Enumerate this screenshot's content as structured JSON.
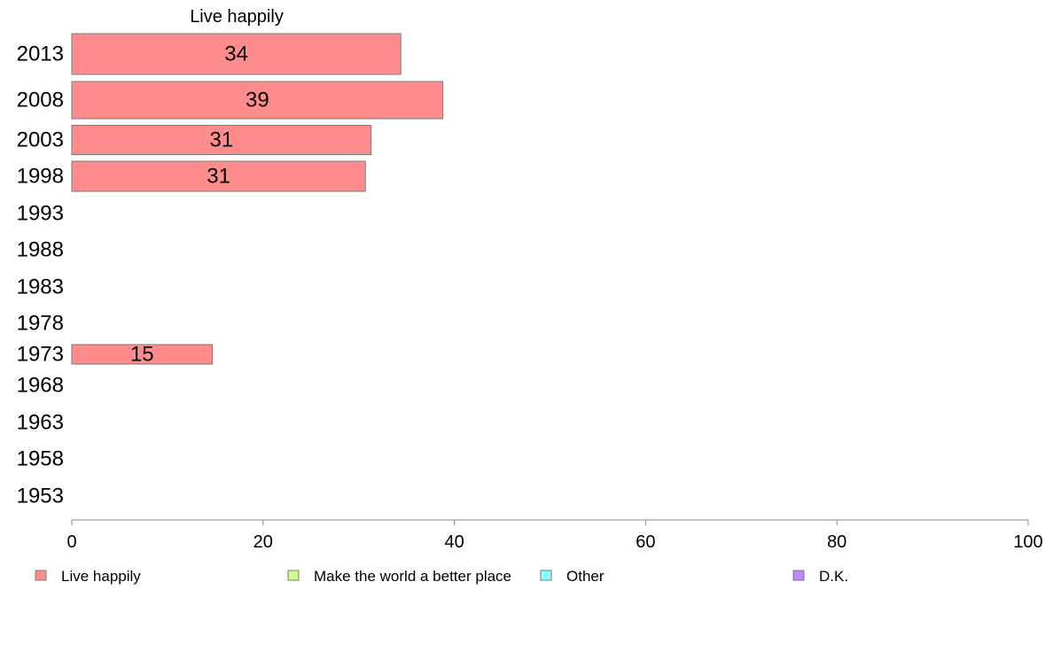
{
  "chart_data": {
    "type": "bar",
    "orientation": "horizontal",
    "title": "Live happily",
    "categories": [
      "2013",
      "2008",
      "2003",
      "1998",
      "1993",
      "1988",
      "1983",
      "1978",
      "1973",
      "1968",
      "1963",
      "1958",
      "1953"
    ],
    "series": [
      {
        "name": "Live happily",
        "color": "#ff8c8c",
        "values": [
          34.4,
          38.8,
          31.3,
          30.7,
          null,
          null,
          null,
          null,
          14.7,
          null,
          null,
          null,
          null
        ]
      }
    ],
    "data_labels": [
      "34",
      "39",
      "31",
      "31",
      "",
      "",
      "",
      "",
      "15",
      "",
      "",
      "",
      ""
    ],
    "xlim": [
      0,
      100
    ],
    "xticks": [
      0,
      20,
      40,
      60,
      80,
      100
    ],
    "xlabel": "",
    "ylabel": "",
    "grid": false,
    "legend_position": "bottom",
    "legend": [
      {
        "label": "Live happily",
        "color": "#ff8c8c"
      },
      {
        "label": "Make the world a better place",
        "color": "#ccff88"
      },
      {
        "label": "Other",
        "color": "#88ffff"
      },
      {
        "label": "D.K.",
        "color": "#bb88ff"
      }
    ]
  }
}
